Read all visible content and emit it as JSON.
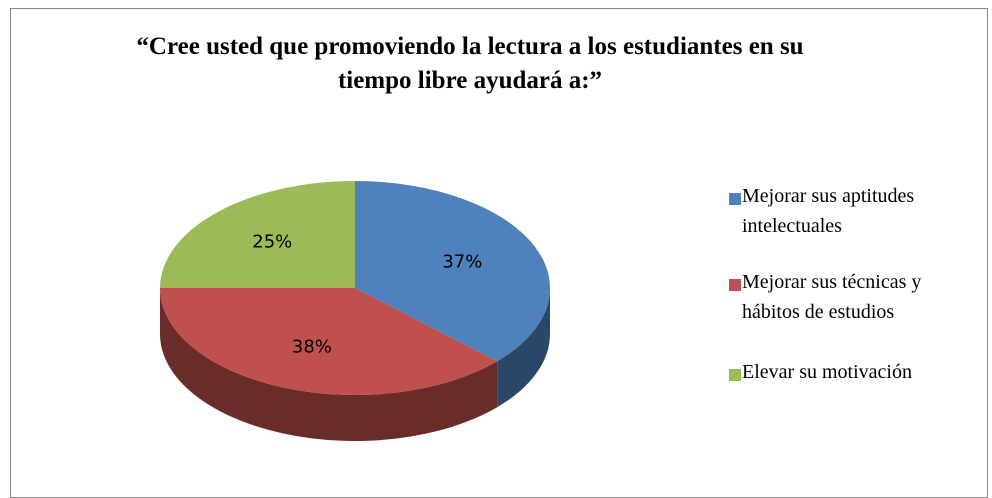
{
  "chart_data": {
    "type": "pie",
    "title": "“Cree usted que promoviendo la lectura a los estudiantes en su tiempo libre ayudará a:”",
    "categories": [
      "Mejorar sus aptitudes intelectuales",
      "Mejorar sus técnicas y hábitos de estudios",
      "Elevar  su motivación"
    ],
    "values": [
      37,
      38,
      25
    ],
    "value_labels": [
      "37%",
      "38%",
      "25%"
    ],
    "colors": [
      "#4f81bd",
      "#c0504d",
      "#9bbb59"
    ],
    "legend": "right"
  }
}
